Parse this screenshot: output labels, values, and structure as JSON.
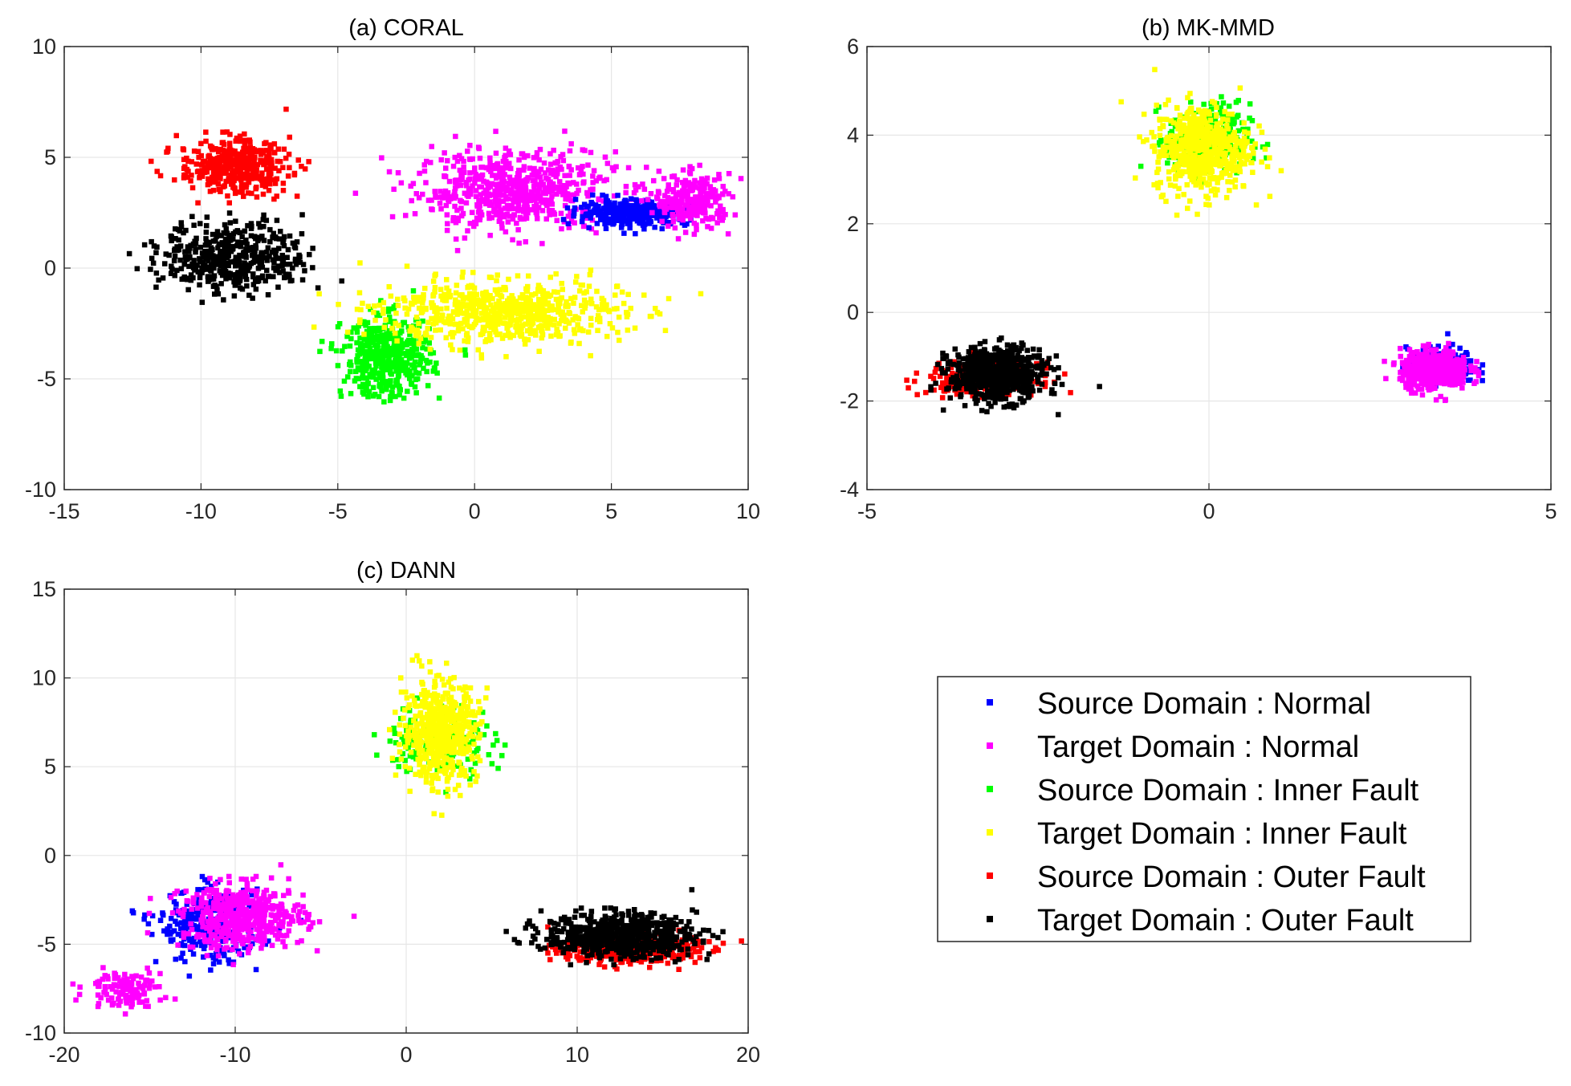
{
  "chart_data": [
    {
      "type": "scatter",
      "title": "(a) CORAL",
      "xlabel": "",
      "ylabel": "",
      "xlim": [
        -15,
        10
      ],
      "ylim": [
        -10,
        10
      ],
      "xticks": [
        -15,
        -10,
        -5,
        0,
        5,
        10
      ],
      "yticks": [
        -10,
        -5,
        0,
        5,
        10
      ],
      "xtick_labels": [
        "-15",
        "-10",
        "-5",
        "0",
        "5",
        "10"
      ],
      "ytick_labels": [
        "-10",
        "-5",
        "0",
        "5",
        "10"
      ],
      "grid": true,
      "clusters": [
        {
          "series": "Target Domain : Normal",
          "center": [
            1.5,
            3.5
          ],
          "spread": [
            1.8,
            0.9
          ],
          "n": 600
        },
        {
          "series": "Source Domain : Normal",
          "center": [
            5.8,
            2.5
          ],
          "spread": [
            1.0,
            0.28
          ],
          "n": 350
        },
        {
          "series": "Target Domain : Normal",
          "center": [
            8.0,
            3.0
          ],
          "spread": [
            0.7,
            0.6
          ],
          "n": 250
        },
        {
          "series": "Source Domain : Inner Fault",
          "center": [
            -3.2,
            -4.0
          ],
          "spread": [
            0.8,
            0.9
          ],
          "n": 450
        },
        {
          "series": "Target Domain : Inner Fault",
          "center": [
            1.0,
            -2.0
          ],
          "spread": [
            2.2,
            0.7
          ],
          "n": 650
        },
        {
          "series": "Source Domain : Outer Fault",
          "center": [
            -8.8,
            4.6
          ],
          "spread": [
            1.0,
            0.6
          ],
          "n": 400
        },
        {
          "series": "Target Domain : Outer Fault",
          "center": [
            -8.8,
            0.5
          ],
          "spread": [
            1.3,
            0.8
          ],
          "n": 450
        }
      ]
    },
    {
      "type": "scatter",
      "title": "(b) MK-MMD",
      "xlabel": "",
      "ylabel": "",
      "xlim": [
        -5,
        5
      ],
      "ylim": [
        -4,
        6
      ],
      "xticks": [
        -5,
        0,
        5
      ],
      "yticks": [
        -4,
        -2,
        0,
        2,
        4,
        6
      ],
      "xtick_labels": [
        "-5",
        "0",
        "5"
      ],
      "ytick_labels": [
        "-4",
        "-2",
        "0",
        "2",
        "4",
        "6"
      ],
      "grid": true,
      "clusters": [
        {
          "series": "Source Domain : Inner Fault",
          "center": [
            0.0,
            3.9
          ],
          "spread": [
            0.3,
            0.4
          ],
          "n": 250
        },
        {
          "series": "Target Domain : Inner Fault",
          "center": [
            -0.1,
            3.7
          ],
          "spread": [
            0.35,
            0.5
          ],
          "n": 550
        },
        {
          "series": "Source Domain : Normal",
          "center": [
            3.4,
            -1.2
          ],
          "spread": [
            0.25,
            0.2
          ],
          "n": 200
        },
        {
          "series": "Target Domain : Normal",
          "center": [
            3.3,
            -1.3
          ],
          "spread": [
            0.25,
            0.22
          ],
          "n": 450
        },
        {
          "series": "Source Domain : Outer Fault",
          "center": [
            -3.3,
            -1.5
          ],
          "spread": [
            0.4,
            0.18
          ],
          "n": 300
        },
        {
          "series": "Target Domain : Outer Fault",
          "center": [
            -3.1,
            -1.4
          ],
          "spread": [
            0.35,
            0.3
          ],
          "n": 650
        }
      ]
    },
    {
      "type": "scatter",
      "title": "(c) DANN",
      "xlabel": "",
      "ylabel": "",
      "xlim": [
        -20,
        20
      ],
      "ylim": [
        -10,
        15
      ],
      "xticks": [
        -20,
        -10,
        0,
        10,
        20
      ],
      "yticks": [
        -10,
        -5,
        0,
        5,
        10,
        15
      ],
      "xtick_labels": [
        "-20",
        "-10",
        "0",
        "10",
        "20"
      ],
      "ytick_labels": [
        "-10",
        "-5",
        "0",
        "5",
        "10",
        "15"
      ],
      "grid": true,
      "clusters": [
        {
          "series": "Source Domain : Inner Fault",
          "center": [
            2.0,
            6.5
          ],
          "spread": [
            1.6,
            1.0
          ],
          "n": 150
        },
        {
          "series": "Target Domain : Inner Fault",
          "center": [
            2.0,
            7.0
          ],
          "spread": [
            1.1,
            1.4
          ],
          "n": 550
        },
        {
          "series": "Source Domain : Normal",
          "center": [
            -11.5,
            -4.0
          ],
          "spread": [
            1.5,
            1.0
          ],
          "n": 300
        },
        {
          "series": "Target Domain : Normal",
          "center": [
            -9.5,
            -3.5
          ],
          "spread": [
            1.8,
            0.9
          ],
          "n": 500
        },
        {
          "series": "Target Domain : Normal",
          "center": [
            -16.5,
            -7.5
          ],
          "spread": [
            1.1,
            0.5
          ],
          "n": 120
        },
        {
          "series": "Source Domain : Outer Fault",
          "center": [
            13.0,
            -5.3
          ],
          "spread": [
            2.0,
            0.4
          ],
          "n": 400
        },
        {
          "series": "Target Domain : Outer Fault",
          "center": [
            12.5,
            -4.5
          ],
          "spread": [
            2.2,
            0.6
          ],
          "n": 650
        }
      ]
    }
  ],
  "legend": {
    "location": "bottom-right",
    "items": [
      {
        "label": "Source Domain : Normal",
        "color": "#0000ff"
      },
      {
        "label": "Target Domain : Normal",
        "color": "#ff00ff"
      },
      {
        "label": "Source Domain : Inner Fault",
        "color": "#00ff00"
      },
      {
        "label": "Target Domain : Inner Fault",
        "color": "#ffff00"
      },
      {
        "label": "Source Domain : Outer Fault",
        "color": "#ff0000"
      },
      {
        "label": "Target Domain : Outer Fault",
        "color": "#000000"
      }
    ]
  },
  "colors": {
    "grid": "#e6e6e6",
    "axis": "#262626"
  }
}
